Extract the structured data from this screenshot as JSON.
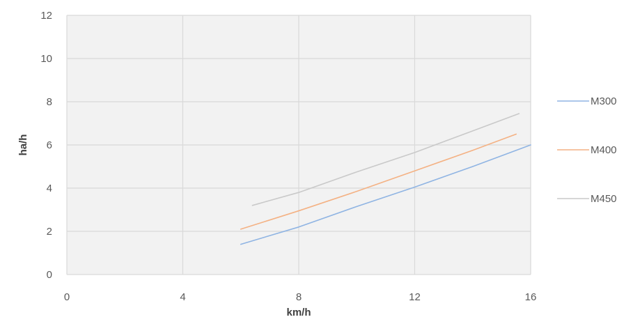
{
  "chart_data": {
    "type": "line",
    "title": "",
    "xlabel": "km/h",
    "ylabel": "ha/h",
    "xlim": [
      0,
      16
    ],
    "ylim": [
      0,
      12
    ],
    "x_ticks": [
      0,
      4,
      8,
      12,
      16
    ],
    "y_ticks": [
      0,
      2,
      4,
      6,
      8,
      10,
      12
    ],
    "grid": true,
    "legend_position": "right",
    "plot_background": "#f2f2f2",
    "grid_color": "#d9d9d9",
    "series": [
      {
        "name": "M300",
        "color": "#8fb4e3",
        "x": [
          6,
          8,
          10,
          12,
          14,
          16
        ],
        "y": [
          1.4,
          2.2,
          3.15,
          4.05,
          5.0,
          6.0
        ]
      },
      {
        "name": "M400",
        "color": "#f4b183",
        "x": [
          6,
          8,
          10,
          12,
          14,
          15.5
        ],
        "y": [
          2.1,
          2.95,
          3.85,
          4.8,
          5.75,
          6.5
        ]
      },
      {
        "name": "M450",
        "color": "#c9c9c9",
        "x": [
          6.4,
          8,
          10,
          12,
          14,
          15.6
        ],
        "y": [
          3.2,
          3.8,
          4.75,
          5.65,
          6.65,
          7.45
        ]
      }
    ]
  }
}
